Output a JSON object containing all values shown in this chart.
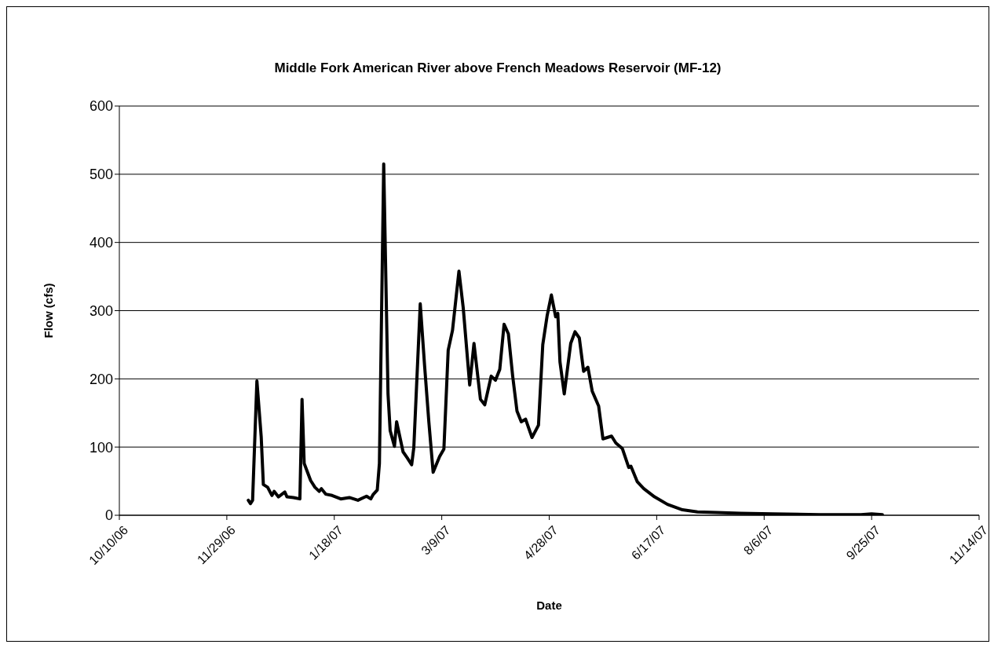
{
  "chart_data": {
    "type": "line",
    "title": "Middle Fork American River above French Meadows Reservoir (MF-12)",
    "xlabel": "Date",
    "ylabel": "Flow (cfs)",
    "x": [
      "2006-12-09",
      "2006-12-10",
      "2006-12-11",
      "2006-12-13",
      "2006-12-15",
      "2006-12-16",
      "2006-12-18",
      "2006-12-20",
      "2006-12-21",
      "2006-12-23",
      "2006-12-26",
      "2006-12-27",
      "2006-12-30",
      "2007-01-02",
      "2007-01-03",
      "2007-01-04",
      "2007-01-07",
      "2007-01-09",
      "2007-01-11",
      "2007-01-12",
      "2007-01-14",
      "2007-01-17",
      "2007-01-21",
      "2007-01-25",
      "2007-01-29",
      "2007-02-02",
      "2007-02-04",
      "2007-02-05",
      "2007-02-07",
      "2007-02-08",
      "2007-02-10",
      "2007-02-11",
      "2007-02-12",
      "2007-02-13",
      "2007-02-15",
      "2007-02-16",
      "2007-02-19",
      "2007-02-21",
      "2007-02-23",
      "2007-02-24",
      "2007-02-27",
      "2007-03-01",
      "2007-03-03",
      "2007-03-05",
      "2007-03-08",
      "2007-03-10",
      "2007-03-12",
      "2007-03-14",
      "2007-03-17",
      "2007-03-19",
      "2007-03-22",
      "2007-03-24",
      "2007-03-27",
      "2007-03-29",
      "2007-04-01",
      "2007-04-03",
      "2007-04-05",
      "2007-04-07",
      "2007-04-09",
      "2007-04-11",
      "2007-04-13",
      "2007-04-15",
      "2007-04-17",
      "2007-04-20",
      "2007-04-23",
      "2007-04-25",
      "2007-04-27",
      "2007-04-29",
      "2007-05-01",
      "2007-05-02",
      "2007-05-03",
      "2007-05-05",
      "2007-05-08",
      "2007-05-10",
      "2007-05-12",
      "2007-05-14",
      "2007-05-16",
      "2007-05-18",
      "2007-05-21",
      "2007-05-23",
      "2007-05-27",
      "2007-05-29",
      "2007-06-01",
      "2007-06-04",
      "2007-06-05",
      "2007-06-08",
      "2007-06-11",
      "2007-06-16",
      "2007-06-22",
      "2007-06-29",
      "2007-07-06",
      "2007-07-15",
      "2007-07-26",
      "2007-08-10",
      "2007-09-01",
      "2007-09-20",
      "2007-09-25",
      "2007-09-30"
    ],
    "series": [
      {
        "color": "#000000",
        "values": [
          22,
          17,
          22,
          197,
          115,
          45,
          41,
          29,
          35,
          27,
          34,
          27,
          26,
          24,
          170,
          76,
          51,
          41,
          35,
          39,
          31,
          29,
          24,
          26,
          22,
          28,
          24,
          30,
          37,
          76,
          515,
          346,
          178,
          124,
          101,
          137,
          93,
          84,
          74,
          99,
          310,
          220,
          137,
          63,
          86,
          97,
          242,
          271,
          358,
          304,
          191,
          252,
          170,
          162,
          204,
          198,
          214,
          280,
          266,
          204,
          153,
          137,
          141,
          114,
          132,
          250,
          292,
          323,
          291,
          296,
          225,
          178,
          252,
          269,
          260,
          211,
          217,
          182,
          160,
          112,
          116,
          106,
          98,
          70,
          72,
          49,
          39,
          27,
          16,
          8,
          5,
          4,
          3,
          2,
          1,
          1,
          2,
          1
        ]
      }
    ],
    "xlim": [
      "2006-10-10",
      "2007-11-14"
    ],
    "xticks": [
      {
        "value": "2006-10-10",
        "label": "10/10/06"
      },
      {
        "value": "2006-11-29",
        "label": "11/29/06"
      },
      {
        "value": "2007-01-18",
        "label": "1/18/07"
      },
      {
        "value": "2007-03-09",
        "label": "3/9/07"
      },
      {
        "value": "2007-04-28",
        "label": "4/28/07"
      },
      {
        "value": "2007-06-17",
        "label": "6/17/07"
      },
      {
        "value": "2007-08-06",
        "label": "8/6/07"
      },
      {
        "value": "2007-09-25",
        "label": "9/25/07"
      },
      {
        "value": "2007-11-14",
        "label": "11/14/07"
      }
    ],
    "ylim": [
      0,
      600
    ],
    "yticks": [
      0,
      100,
      200,
      300,
      400,
      500,
      600
    ],
    "grid": "y",
    "legend": false,
    "marker": "none",
    "line_style": "solid"
  }
}
